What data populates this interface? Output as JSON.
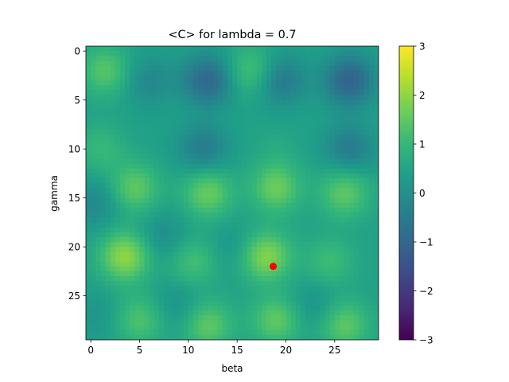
{
  "chart_data": {
    "type": "heatmap",
    "title": "<C> for lambda = 0.7",
    "xlabel": "beta",
    "ylabel": "gamma",
    "grid_size": 30,
    "x_range": [
      -0.5,
      29.5
    ],
    "y_range": [
      29.5,
      -0.5
    ],
    "x_ticks": [
      0,
      5,
      10,
      15,
      20,
      25
    ],
    "y_ticks": [
      0,
      5,
      10,
      15,
      20,
      25
    ],
    "colorscale": "viridis",
    "colorbar": {
      "vmin": -3,
      "vmax": 3,
      "ticks": [
        3,
        2,
        1,
        0,
        -1,
        -2,
        -3
      ],
      "tick_labels": [
        "3",
        "2",
        "1",
        "0",
        "−1",
        "−2",
        "−3"
      ]
    },
    "background_value": 0.4,
    "features": [
      {
        "beta": 1.5,
        "gamma": 2,
        "value": 1.4
      },
      {
        "beta": 6,
        "gamma": 3,
        "value": -0.2
      },
      {
        "beta": 12,
        "gamma": 3,
        "value": -1.0
      },
      {
        "beta": 16.5,
        "gamma": 2,
        "value": 1.3
      },
      {
        "beta": 19.5,
        "gamma": 3,
        "value": -0.6
      },
      {
        "beta": 26.5,
        "gamma": 3,
        "value": -1.1
      },
      {
        "beta": 1,
        "gamma": 10,
        "value": 1.0
      },
      {
        "beta": 11.5,
        "gamma": 10,
        "value": -0.5
      },
      {
        "beta": 19,
        "gamma": 10,
        "value": 0.6
      },
      {
        "beta": 26.5,
        "gamma": 10,
        "value": -0.5
      },
      {
        "beta": 4.5,
        "gamma": 14,
        "value": 1.5
      },
      {
        "beta": 12,
        "gamma": 14.5,
        "value": 1.6
      },
      {
        "beta": 19,
        "gamma": 14,
        "value": 1.6
      },
      {
        "beta": 26,
        "gamma": 14.5,
        "value": 1.5
      },
      {
        "beta": 0.5,
        "gamma": 15.5,
        "value": -0.2
      },
      {
        "beta": 3.5,
        "gamma": 21,
        "value": 2.0
      },
      {
        "beta": 18,
        "gamma": 21,
        "value": 1.9
      },
      {
        "beta": 10.5,
        "gamma": 21.5,
        "value": 1.2
      },
      {
        "beta": 24.5,
        "gamma": 21.5,
        "value": 1.1
      },
      {
        "beta": 7.5,
        "gamma": 19,
        "value": -0.1
      },
      {
        "beta": 14.5,
        "gamma": 20,
        "value": 0.1
      },
      {
        "beta": 0.5,
        "gamma": 27,
        "value": 0.1
      },
      {
        "beta": 5,
        "gamma": 27.5,
        "value": 1.3
      },
      {
        "beta": 12,
        "gamma": 28,
        "value": 1.5
      },
      {
        "beta": 19,
        "gamma": 27.5,
        "value": 1.5
      },
      {
        "beta": 26,
        "gamma": 28,
        "value": 1.5
      },
      {
        "beta": 9,
        "gamma": 26,
        "value": 0.0
      },
      {
        "beta": 23,
        "gamma": 26,
        "value": 0.0
      }
    ],
    "marker": {
      "beta": 18.7,
      "gamma": 22,
      "color": "#ff0000"
    }
  }
}
